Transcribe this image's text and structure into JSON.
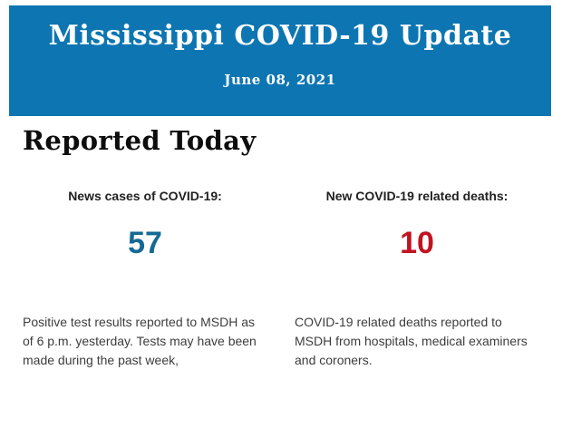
{
  "header": {
    "title": "Mississippi COVID-19 Update",
    "date": "June 08, 2021",
    "background_color": "#0d76b2",
    "text_color": "#ffffff"
  },
  "main": {
    "section_title": "Reported Today",
    "stats": [
      {
        "label": "News cases of COVID-19:",
        "value": "57",
        "value_color": "#156a94",
        "description": "Positive test results reported to MSDH as of 6 p.m. yesterday. Tests may have been made during the past week,"
      },
      {
        "label": "New COVID-19 related deaths:",
        "value": "10",
        "value_color": "#c11320",
        "description": "COVID-19 related deaths reported to MSDH from hospitals, medical examiners and coroners."
      }
    ]
  }
}
